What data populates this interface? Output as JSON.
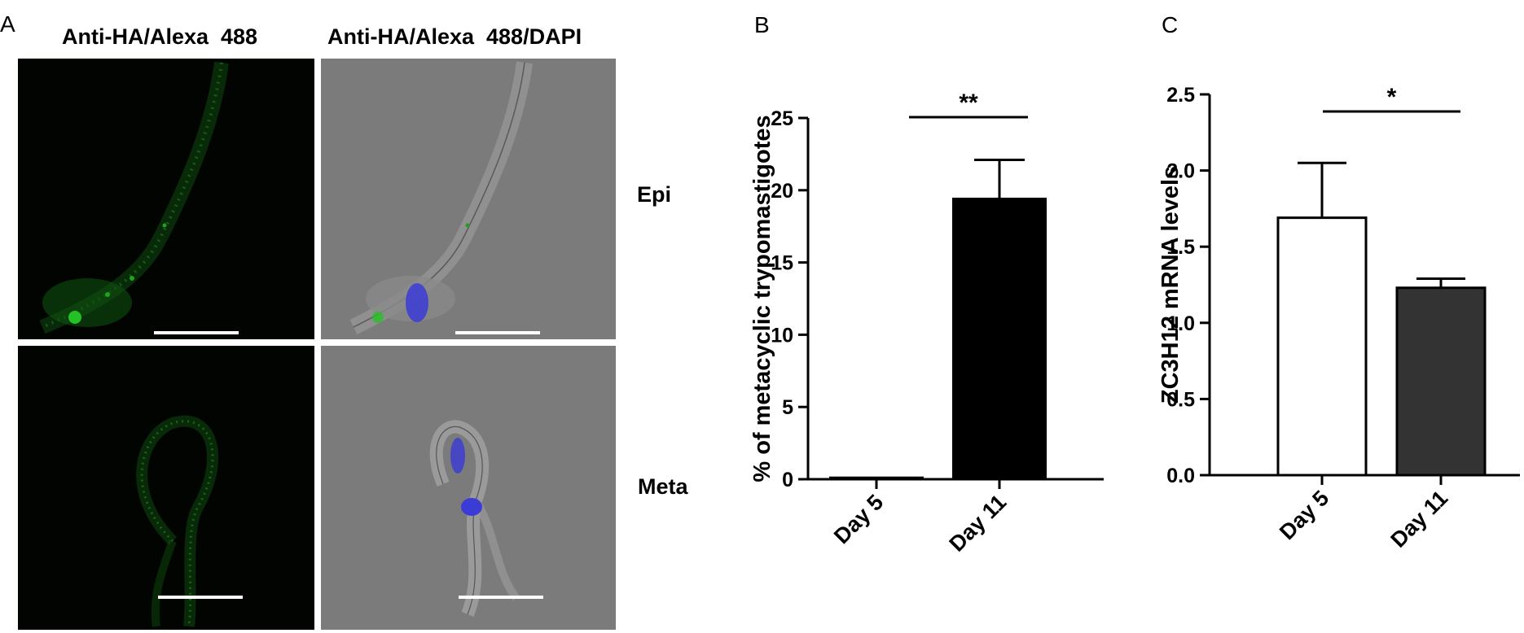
{
  "panel_a": {
    "letter": "A",
    "headers": [
      "Anti-HA/Alexa  488",
      "Anti-HA/Alexa  488/DAPI"
    ],
    "rows": [
      "Epi",
      "Meta"
    ],
    "colors": {
      "fluorescence": "#1f8f1f",
      "dapi": "#3b3bd6",
      "dark_bg": "#010401",
      "dic_bg": "#7b7b7b"
    }
  },
  "chart_data": [
    {
      "panel_letter": "B",
      "type": "bar",
      "categories": [
        "Day 5",
        "Day 11"
      ],
      "values": [
        0.1,
        19.4
      ],
      "errors": [
        0,
        2.7
      ],
      "bar_colors": [
        "#ffffff",
        "#000000"
      ],
      "ylabel": "% of metacyclic trypomastigotes",
      "ylim": [
        0,
        25
      ],
      "yticks": [
        0,
        5,
        10,
        15,
        20,
        25
      ],
      "ytick_labels": [
        "0",
        "5",
        "10",
        "15",
        "20",
        "25"
      ],
      "significance": "**",
      "grid": false
    },
    {
      "panel_letter": "C",
      "type": "bar",
      "categories": [
        "Day 5",
        "Day 11"
      ],
      "values": [
        1.69,
        1.23
      ],
      "errors": [
        0.36,
        0.06
      ],
      "bar_colors": [
        "#ffffff",
        "#333333"
      ],
      "ylabel": "ZC3H12 mRNA levels",
      "ylim": [
        0,
        2.5
      ],
      "yticks": [
        0,
        0.5,
        1.0,
        1.5,
        2.0,
        2.5
      ],
      "ytick_labels": [
        "0.0",
        "0.5",
        "1.0",
        "1.5",
        "2.0",
        "2.5"
      ],
      "significance": "*",
      "grid": false
    }
  ]
}
